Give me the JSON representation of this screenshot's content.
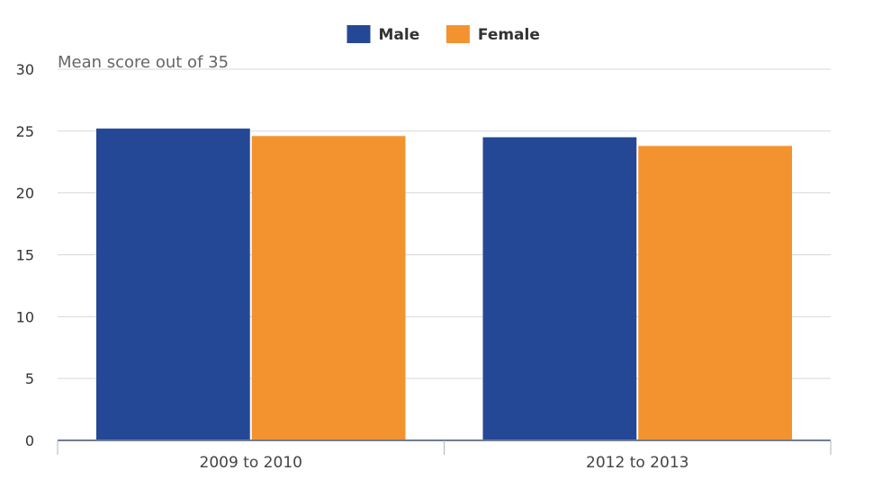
{
  "chart_data": {
    "type": "bar",
    "title": "",
    "xlabel": "",
    "ylabel": "Mean score out of 35",
    "ylim": [
      0,
      30
    ],
    "yticks": [
      0,
      5,
      10,
      15,
      20,
      25,
      30
    ],
    "grid": true,
    "legend_position": "top-center",
    "categories": [
      "2009 to 2010",
      "2012 to 2013"
    ],
    "series": [
      {
        "name": "Male",
        "color": "#254896",
        "values": [
          25.2,
          24.5
        ]
      },
      {
        "name": "Female",
        "color": "#f3932f",
        "values": [
          24.6,
          23.8
        ]
      }
    ]
  }
}
